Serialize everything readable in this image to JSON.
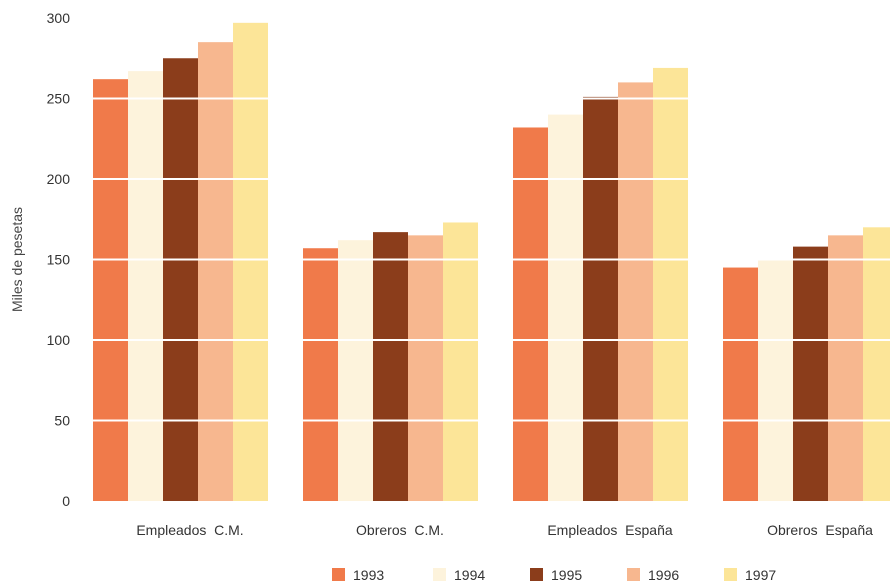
{
  "chart_data": {
    "type": "bar",
    "title": "",
    "xlabel": "",
    "ylabel": "Miles de pesetas",
    "ylim": [
      0,
      300
    ],
    "yticks": [
      0,
      50,
      100,
      150,
      200,
      250,
      300
    ],
    "categories": [
      "Empleados  C.M.",
      "Obreros  C.M.",
      "Empleados  España",
      "Obreros  España"
    ],
    "series": [
      {
        "name": "1993",
        "color": "#f07a4a",
        "values": [
          262,
          157,
          232,
          145
        ]
      },
      {
        "name": "1994",
        "color": "#fdf3dc",
        "values": [
          267,
          162,
          240,
          150
        ]
      },
      {
        "name": "1995",
        "color": "#8b3d1b",
        "values": [
          275,
          167,
          251,
          158
        ]
      },
      {
        "name": "1996",
        "color": "#f7b78f",
        "values": [
          285,
          165,
          260,
          165
        ]
      },
      {
        "name": "1997",
        "color": "#fce598",
        "values": [
          297,
          173,
          269,
          170
        ]
      }
    ],
    "grid": true,
    "legend_position": "bottom"
  }
}
